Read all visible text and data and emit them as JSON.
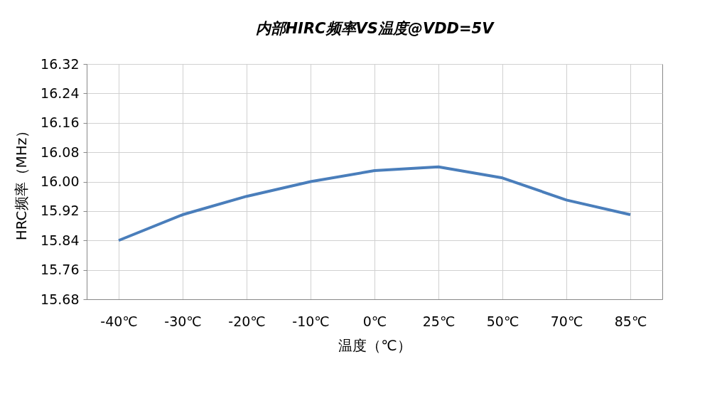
{
  "chart_data": {
    "type": "line",
    "title": "内部HIRC频率VS温度@VDD=5V",
    "xlabel": "温度（℃）",
    "ylabel": "HRC频率（MHz）",
    "categories": [
      "-40℃",
      "-30℃",
      "-20℃",
      "-10℃",
      "0℃",
      "25℃",
      "50℃",
      "70℃",
      "85℃"
    ],
    "series": [
      {
        "color": "#4a7ebb",
        "values": [
          15.84,
          15.91,
          15.96,
          16.0,
          16.03,
          16.04,
          16.01,
          15.95,
          15.91
        ]
      }
    ],
    "ylim": [
      15.68,
      16.32
    ],
    "yticks": [
      {
        "value": 15.68,
        "label": "15.68"
      },
      {
        "value": 15.76,
        "label": "15.76"
      },
      {
        "value": 15.84,
        "label": "15.84"
      },
      {
        "value": 15.92,
        "label": "15.92"
      },
      {
        "value": 16.0,
        "label": "16.00"
      },
      {
        "value": 16.08,
        "label": "16.08"
      },
      {
        "value": 16.16,
        "label": "16.16"
      },
      {
        "value": 16.24,
        "label": "16.24"
      },
      {
        "value": 16.32,
        "label": "16.32"
      }
    ],
    "grid": true,
    "marker": "none",
    "line_style": "solid"
  }
}
